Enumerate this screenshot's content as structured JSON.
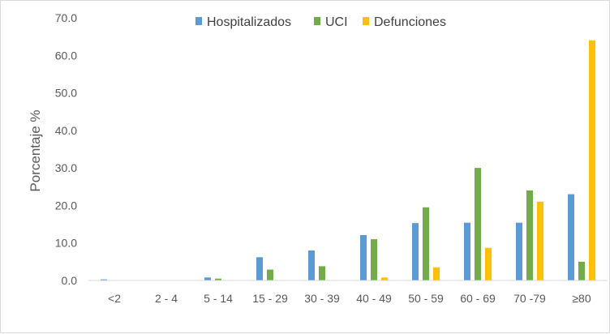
{
  "chart_data": {
    "type": "bar",
    "title": "",
    "xlabel": "",
    "ylabel": "Porcentaje %",
    "ylim": [
      0,
      70
    ],
    "yticks": [
      "0.0",
      "10.0",
      "20.0",
      "30.0",
      "40.0",
      "50.0",
      "60.0",
      "70.0"
    ],
    "grid": false,
    "legend_position": "top",
    "categories": [
      "<2",
      "2 - 4",
      "5 - 14",
      "15 - 29",
      "30 - 39",
      "40 - 49",
      "50 - 59",
      "60 - 69",
      "70 -79",
      "≥80"
    ],
    "series": [
      {
        "name": "Hospitalizados",
        "color": "#5b9bd5",
        "values": [
          0.3,
          0.0,
          0.8,
          6.2,
          8.0,
          12.1,
          15.3,
          15.4,
          15.4,
          23.0
        ]
      },
      {
        "name": "UCI",
        "color": "#70ad47",
        "values": [
          0.0,
          0.0,
          0.5,
          2.9,
          3.8,
          11.0,
          19.5,
          30.0,
          24.0,
          5.0
        ]
      },
      {
        "name": "Defunciones",
        "color": "#ffc000",
        "values": [
          0.0,
          0.0,
          0.0,
          0.0,
          0.0,
          0.8,
          3.5,
          8.7,
          21.0,
          64.0
        ]
      }
    ]
  }
}
